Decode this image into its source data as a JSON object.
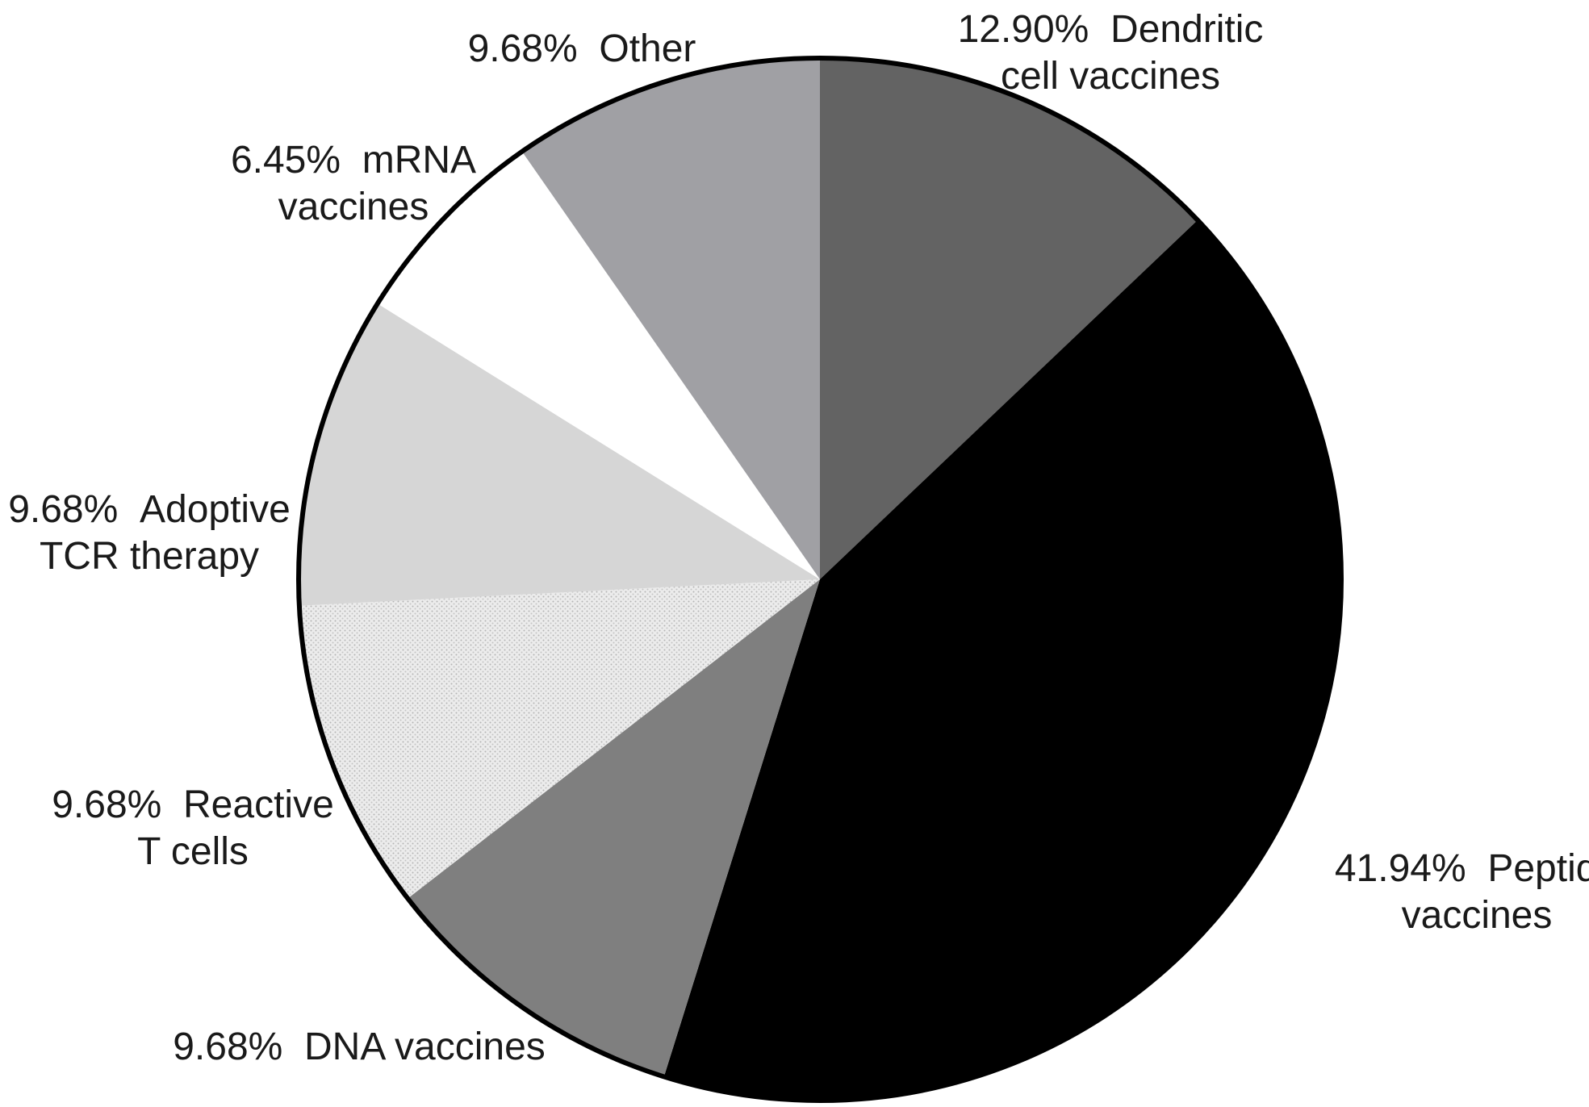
{
  "chart_data": {
    "type": "pie",
    "title": "",
    "start_angle_deg": 0,
    "direction": "clockwise",
    "outline_color": "#000000",
    "slices": [
      {
        "key": "dendritic",
        "percent_label": "12.90%",
        "name_lines": [
          "Dendritic",
          "cell vaccines"
        ],
        "value": 12.9,
        "color": "#636363",
        "pattern": "solid"
      },
      {
        "key": "peptide",
        "percent_label": "41.94%",
        "name_lines": [
          "Peptide",
          "vaccines"
        ],
        "value": 41.94,
        "color": "#000000",
        "pattern": "solid"
      },
      {
        "key": "dna",
        "percent_label": "9.68%",
        "name_lines": [
          "DNA vaccines"
        ],
        "value": 9.68,
        "color": "#7f7f7f",
        "pattern": "solid"
      },
      {
        "key": "reactive-t-cells",
        "percent_label": "9.68%",
        "name_lines": [
          "Reactive",
          "T cells"
        ],
        "value": 9.68,
        "color": "#e6e6e6",
        "pattern": "dotted"
      },
      {
        "key": "adoptive-tcr",
        "percent_label": "9.68%",
        "name_lines": [
          "Adoptive",
          "TCR therapy"
        ],
        "value": 9.68,
        "color": "#d6d6d6",
        "pattern": "solid"
      },
      {
        "key": "mrna",
        "percent_label": "6.45%",
        "name_lines": [
          "mRNA",
          "vaccines"
        ],
        "value": 6.45,
        "color": "#ffffff",
        "pattern": "solid"
      },
      {
        "key": "other",
        "percent_label": "9.68%",
        "name_lines": [
          "Other"
        ],
        "value": 9.68,
        "color": "#a0a0a4",
        "pattern": "solid"
      }
    ]
  }
}
